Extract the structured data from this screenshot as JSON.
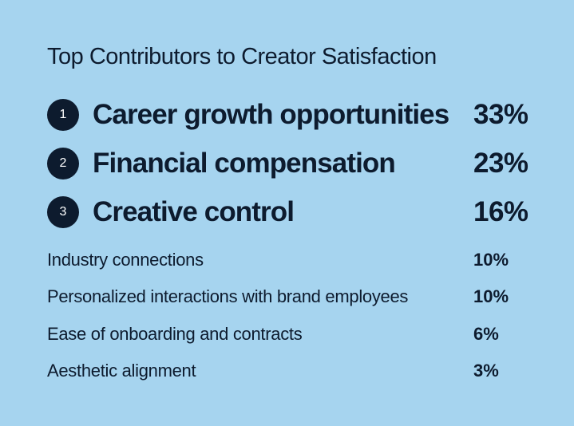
{
  "title": "Top Contributors to Creator Satisfaction",
  "chart_data": {
    "type": "table",
    "title": "Top Contributors to Creator Satisfaction",
    "items": [
      {
        "rank": "1",
        "label": "Career growth opportunities",
        "value": 33,
        "value_label": "33%"
      },
      {
        "rank": "2",
        "label": "Financial compensation",
        "value": 23,
        "value_label": "23%"
      },
      {
        "rank": "3",
        "label": "Creative control",
        "value": 16,
        "value_label": "16%"
      },
      {
        "label": "Industry connections",
        "value": 10,
        "value_label": "10%"
      },
      {
        "label": "Personalized interactions with brand employees",
        "value": 10,
        "value_label": "10%"
      },
      {
        "label": "Ease of onboarding and contracts",
        "value": 6,
        "value_label": "6%"
      },
      {
        "label": "Aesthetic alignment",
        "value": 3,
        "value_label": "3%"
      }
    ]
  },
  "colors": {
    "background": "#a6d4ef",
    "text": "#0d1b2e",
    "badge": "#0d1b2e",
    "badge_text": "#ffffff"
  }
}
